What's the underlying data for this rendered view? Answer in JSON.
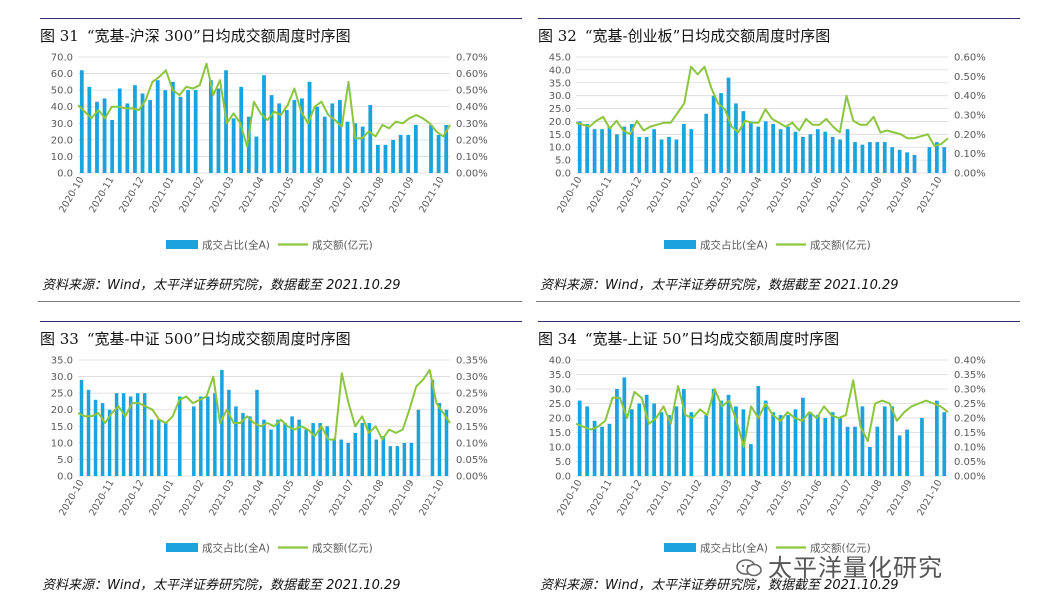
{
  "legend": {
    "bar": "成交占比(全A)",
    "line": "成交额(亿元)"
  },
  "source_text": "资料来源：Wind，太平洋证券研究院，数据截至 2021.10.29",
  "watermark": "太平洋量化研究",
  "colors": {
    "bar": "#1ba3de",
    "line": "#8cc63f",
    "grid": "#d9d9d9",
    "axis": "#595959"
  },
  "chart_data": [
    {
      "type": "bar",
      "figure_label": "图 31",
      "title": "“宽基-沪深 300”日均成交额周度时序图",
      "left_ticks": [
        "0.0",
        "10.0",
        "20.0",
        "30.0",
        "40.0",
        "50.0",
        "60.0",
        "70.0"
      ],
      "right_ticks": [
        "0.00%",
        "0.10%",
        "0.20%",
        "0.30%",
        "0.40%",
        "0.50%",
        "0.60%",
        "0.70%"
      ],
      "left_max": 70,
      "right_max": 0.7,
      "x_labels": [
        "2020-10",
        "2020-11",
        "2020-12",
        "2021-01",
        "2021-02",
        "2021-03",
        "2021-04",
        "2021-05",
        "2021-06",
        "2021-07",
        "2021-08",
        "2021-09",
        "2021-10"
      ],
      "bars": [
        62,
        52,
        43,
        45,
        32,
        51,
        42,
        53,
        48,
        44,
        56,
        50,
        55,
        46,
        50,
        50,
        null,
        56,
        51,
        62,
        33,
        52,
        34,
        22,
        59,
        47,
        42,
        38,
        44,
        45,
        55,
        40,
        34,
        42,
        44,
        31,
        30,
        28,
        41,
        17,
        17,
        20,
        23,
        23,
        29,
        null,
        29,
        23,
        29
      ],
      "line": [
        0.41,
        0.37,
        0.33,
        0.38,
        0.33,
        0.4,
        0.4,
        0.39,
        0.39,
        0.38,
        0.44,
        0.55,
        0.58,
        0.62,
        0.5,
        0.47,
        0.52,
        0.51,
        0.53,
        0.66,
        0.47,
        0.56,
        0.3,
        0.36,
        0.3,
        0.16,
        0.43,
        0.36,
        0.32,
        0.37,
        0.35,
        0.41,
        0.51,
        0.37,
        0.3,
        0.4,
        0.43,
        0.35,
        0.32,
        0.28,
        0.55,
        0.21,
        0.21,
        0.25,
        0.22,
        0.29,
        0.27,
        0.31,
        0.3,
        0.33,
        0.35,
        0.33,
        0.3,
        0.25,
        0.22,
        0.29
      ]
    },
    {
      "type": "bar",
      "figure_label": "图 32",
      "title": "“宽基-创业板”日均成交额周度时序图",
      "left_ticks": [
        "0.0",
        "5.0",
        "10.0",
        "15.0",
        "20.0",
        "25.0",
        "30.0",
        "35.0",
        "40.0",
        "45.0"
      ],
      "right_ticks": [
        "0.00%",
        "0.10%",
        "0.20%",
        "0.30%",
        "0.40%",
        "0.50%",
        "0.60%"
      ],
      "left_max": 45,
      "right_max": 0.6,
      "x_labels": [
        "2020-10",
        "2020-11",
        "2020-12",
        "2021-01",
        "2021-02",
        "2021-03",
        "2021-04",
        "2021-05",
        "2021-06",
        "2021-07",
        "2021-08",
        "2021-09",
        "2021-10"
      ],
      "bars": [
        20,
        19,
        17,
        17,
        18,
        15,
        18,
        19,
        14,
        14,
        17,
        13,
        14,
        13,
        19,
        17,
        null,
        23,
        30,
        31,
        37,
        27,
        24,
        20,
        18,
        20,
        19,
        17,
        18,
        16,
        14,
        15,
        17,
        16,
        14,
        13,
        17,
        12,
        11,
        12,
        12,
        12,
        10,
        9,
        8,
        7,
        null,
        10,
        12,
        10
      ],
      "line": [
        0.26,
        0.25,
        0.24,
        0.27,
        0.29,
        0.23,
        0.27,
        0.22,
        0.2,
        0.27,
        0.22,
        0.24,
        0.25,
        0.26,
        0.26,
        0.31,
        0.36,
        0.55,
        0.51,
        0.55,
        0.44,
        0.36,
        0.33,
        0.24,
        0.21,
        0.27,
        0.26,
        0.26,
        0.33,
        0.28,
        0.26,
        0.24,
        0.26,
        0.22,
        0.28,
        0.25,
        0.25,
        0.28,
        0.24,
        0.21,
        0.4,
        0.27,
        0.25,
        0.25,
        0.29,
        0.21,
        0.22,
        0.21,
        0.2,
        0.18,
        0.18,
        0.19,
        0.2,
        0.14,
        0.15,
        0.18
      ]
    },
    {
      "type": "bar",
      "figure_label": "图 33",
      "title": "“宽基-中证 500”日均成交额周度时序图",
      "left_ticks": [
        "0.0",
        "5.0",
        "10.0",
        "15.0",
        "20.0",
        "25.0",
        "30.0",
        "35.0"
      ],
      "right_ticks": [
        "0.00%",
        "0.05%",
        "0.10%",
        "0.15%",
        "0.20%",
        "0.25%",
        "0.30%",
        "0.35%"
      ],
      "left_max": 35,
      "right_max": 0.35,
      "x_labels": [
        "2020-10",
        "2020-11",
        "2020-12",
        "2021-01",
        "2021-02",
        "2021-03",
        "2021-04",
        "2021-05",
        "2021-06",
        "2021-07",
        "2021-08",
        "2021-09",
        "2021-10"
      ],
      "bars": [
        29,
        26,
        23,
        22,
        20,
        25,
        25,
        24,
        25,
        25,
        17,
        17,
        16,
        null,
        24,
        null,
        21,
        24,
        24,
        25,
        32,
        26,
        21,
        19,
        18,
        26,
        17,
        14,
        17,
        16,
        18,
        17,
        14,
        16,
        16,
        15,
        11,
        11,
        10,
        13,
        16,
        16,
        11,
        12,
        9,
        9,
        10,
        10,
        20,
        null,
        29,
        22,
        20
      ],
      "line": [
        0.19,
        0.18,
        0.18,
        0.19,
        0.16,
        0.19,
        0.21,
        0.18,
        0.22,
        0.22,
        0.21,
        0.2,
        0.17,
        0.16,
        0.18,
        0.23,
        0.24,
        0.22,
        0.23,
        0.24,
        0.3,
        0.16,
        0.2,
        0.16,
        0.16,
        0.18,
        0.16,
        0.15,
        0.16,
        0.15,
        0.17,
        0.15,
        0.14,
        0.15,
        0.14,
        0.12,
        0.15,
        0.11,
        0.11,
        0.31,
        0.22,
        0.15,
        0.18,
        0.13,
        0.15,
        0.11,
        0.14,
        0.13,
        0.14,
        0.2,
        0.27,
        0.29,
        0.32,
        0.22,
        0.19,
        0.16
      ]
    },
    {
      "type": "bar",
      "figure_label": "图 34",
      "title": "“宽基-上证 50”日均成交额周度时序图",
      "left_ticks": [
        "0.0",
        "5.0",
        "10.0",
        "15.0",
        "20.0",
        "25.0",
        "30.0",
        "35.0",
        "40.0"
      ],
      "right_ticks": [
        "0.00%",
        "0.05%",
        "0.10%",
        "0.15%",
        "0.20%",
        "0.25%",
        "0.30%",
        "0.35%",
        "0.40%"
      ],
      "left_max": 40,
      "right_max": 0.4,
      "x_labels": [
        "2020-10",
        "2020-11",
        "2020-12",
        "2021-01",
        "2021-02",
        "2021-03",
        "2021-04",
        "2021-05",
        "2021-06",
        "2021-07",
        "2021-08",
        "2021-09",
        "2021-10"
      ],
      "bars": [
        26,
        24,
        19,
        17,
        18,
        30,
        34,
        23,
        25,
        28,
        25,
        22,
        21,
        24,
        30,
        22,
        null,
        21,
        30,
        26,
        28,
        24,
        23,
        11,
        31,
        26,
        22,
        21,
        21,
        23,
        27,
        22,
        21,
        20,
        22,
        20,
        17,
        17,
        24,
        10,
        17,
        24,
        24,
        14,
        16,
        null,
        20,
        null,
        26,
        22
      ],
      "line": [
        0.18,
        0.17,
        0.16,
        0.17,
        0.19,
        0.27,
        0.27,
        0.2,
        0.29,
        0.27,
        0.18,
        0.2,
        0.24,
        0.18,
        0.31,
        0.21,
        0.2,
        0.23,
        0.21,
        0.3,
        0.24,
        0.26,
        0.19,
        0.1,
        0.24,
        0.2,
        0.25,
        0.21,
        0.19,
        0.22,
        0.2,
        0.19,
        0.22,
        0.2,
        0.24,
        0.21,
        0.2,
        0.21,
        0.33,
        0.17,
        0.12,
        0.25,
        0.26,
        0.25,
        0.19,
        0.22,
        0.24,
        0.25,
        0.26,
        0.25,
        0.24,
        0.22
      ]
    }
  ]
}
